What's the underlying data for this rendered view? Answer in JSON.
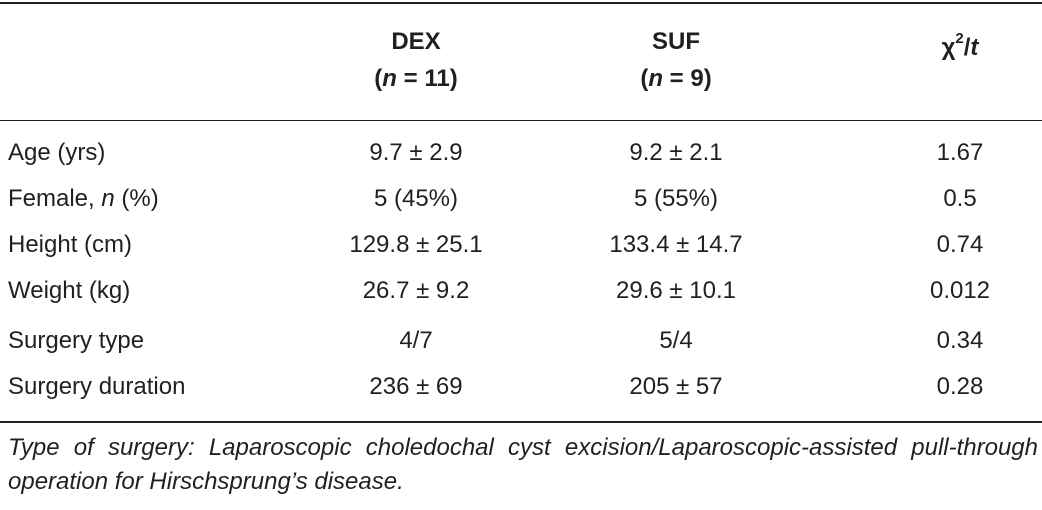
{
  "table": {
    "headers": {
      "dex_name": "DEX",
      "dex_n_symbol": "n",
      "dex_n_value": " = 11",
      "suf_name": "SUF",
      "suf_n_symbol": "n",
      "suf_n_value": " = 9",
      "stat_chi": "χ",
      "stat_sup": "2",
      "stat_slash": "/",
      "stat_t": "t"
    },
    "rows": [
      {
        "label": "Age (yrs)",
        "dex": "9.7 ± 2.9",
        "suf": "9.2 ± 2.1",
        "stat": "1.67"
      },
      {
        "label": "Female, ",
        "label_italic": "n",
        "label_suffix": " (%)",
        "dex": "5 (45%)",
        "suf": "5 (55%)",
        "stat": "0.5"
      },
      {
        "label": "Height (cm)",
        "dex": "129.8 ± 25.1",
        "suf": "133.4 ± 14.7",
        "stat": "0.74"
      },
      {
        "label": "Weight (kg)",
        "dex": "26.7 ± 9.2",
        "suf": "29.6 ± 10.1",
        "stat": "0.012"
      },
      {
        "label": "Surgery type",
        "dex": "4/7",
        "suf": "5/4",
        "stat": "0.34"
      },
      {
        "label": "Surgery duration",
        "dex": "236 ± 69",
        "suf": "205 ± 57",
        "stat": "0.28"
      }
    ],
    "footnote": "Type of surgery: Laparoscopic choledochal cyst excision/Laparoscopic-assisted pull-through operation for Hirschsprung’s disease."
  }
}
